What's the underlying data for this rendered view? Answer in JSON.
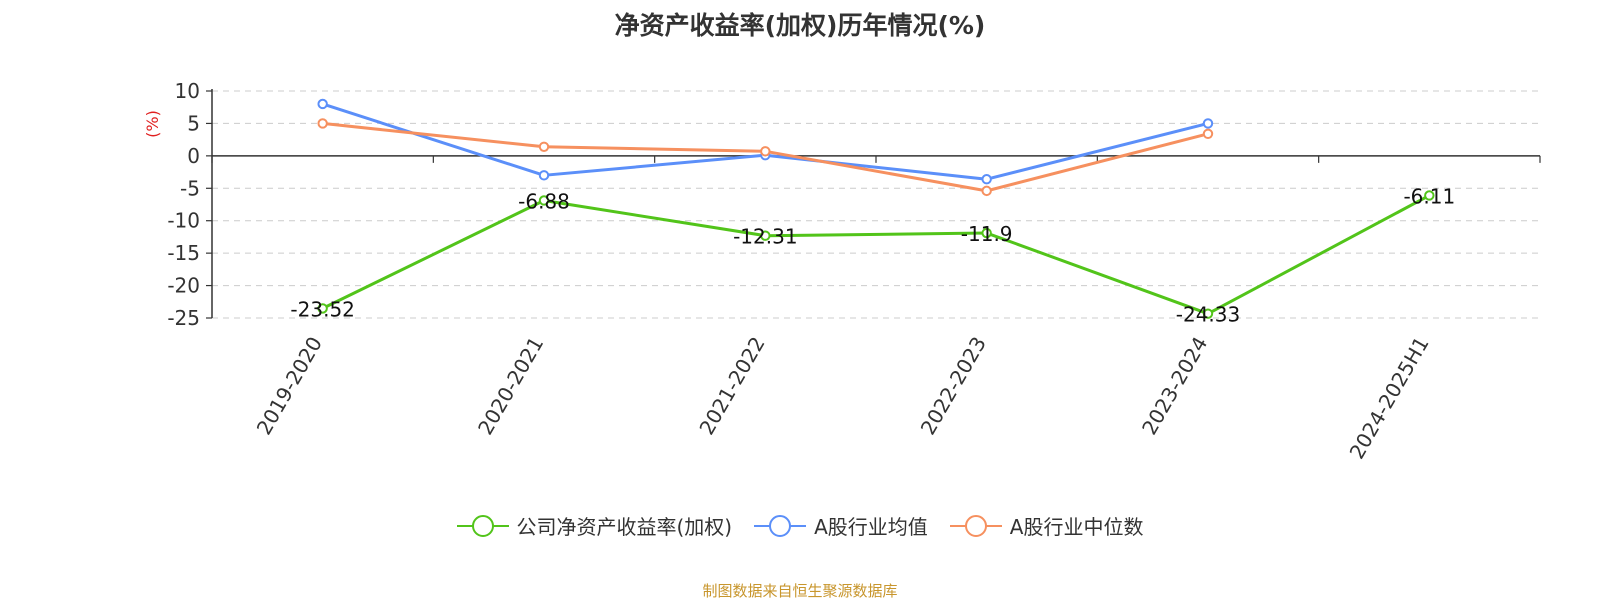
{
  "chart_data": {
    "type": "line",
    "title": "净资产收益率(加权)历年情况(%)",
    "ylabel": "(%)",
    "categories": [
      "2019-2020",
      "2020-2021",
      "2021-2022",
      "2022-2023",
      "2023-2024",
      "2024-2025H1"
    ],
    "ylim": [
      -25,
      10
    ],
    "yticks": [
      10,
      5,
      0,
      -5,
      -10,
      -15,
      -20,
      -25
    ],
    "grid": true,
    "legend_position": "bottom",
    "series": [
      {
        "name": "公司净资产收益率(加权)",
        "color": "#52c41a",
        "values": [
          -23.52,
          -6.88,
          -12.31,
          -11.9,
          -24.33,
          -6.11
        ],
        "labels": [
          "-23.52",
          "-6.88",
          "-12.31",
          "-11.9",
          "-24.33",
          "-6.11"
        ]
      },
      {
        "name": "A股行业均值",
        "color": "#5b8ff9",
        "values": [
          8.0,
          -3.0,
          0.1,
          -3.6,
          5.0,
          null
        ]
      },
      {
        "name": "A股行业中位数",
        "color": "#f6905f",
        "values": [
          5.0,
          1.4,
          0.7,
          -5.4,
          3.4,
          null
        ]
      }
    ]
  },
  "footer": {
    "source": "制图数据来自恒生聚源数据库"
  }
}
